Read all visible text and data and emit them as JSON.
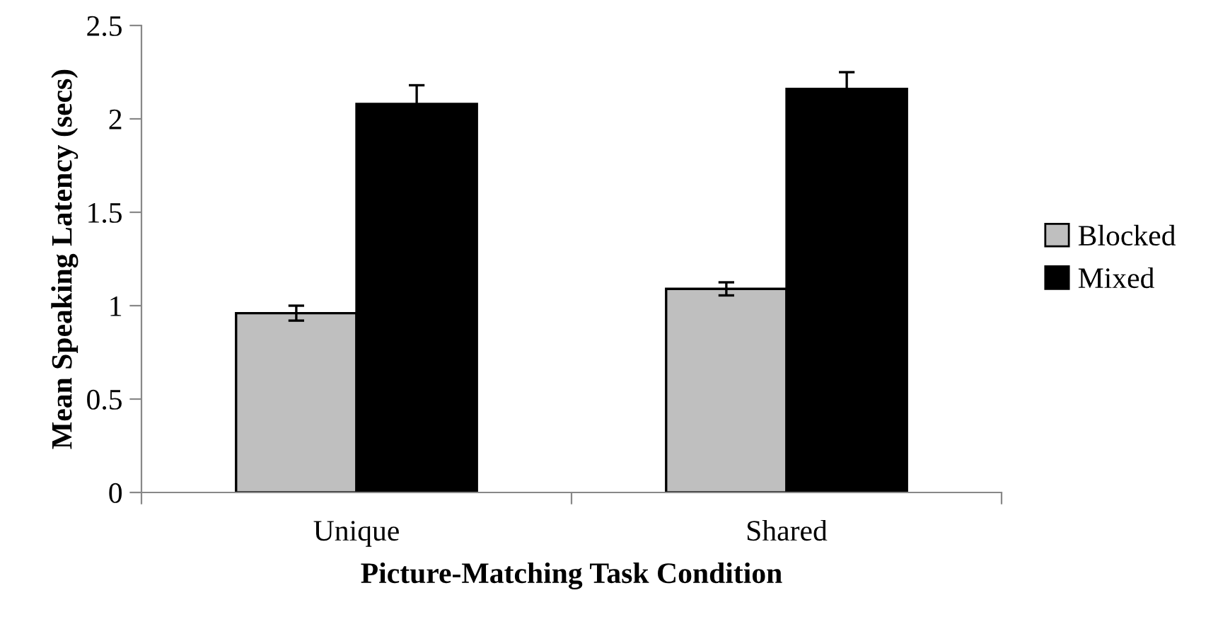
{
  "chart_data": {
    "type": "bar",
    "xlabel": "Picture-Matching Task Condition",
    "ylabel": "Mean Speaking Latency (secs)",
    "categories": [
      "Unique",
      "Shared"
    ],
    "series": [
      {
        "name": "Blocked",
        "color": "#bfbfbf",
        "values": [
          0.96,
          1.09
        ],
        "errors": [
          0.04,
          0.035
        ]
      },
      {
        "name": "Mixed",
        "color": "#000000",
        "values": [
          2.08,
          2.16
        ],
        "errors": [
          0.1,
          0.09
        ]
      }
    ],
    "ylim": [
      0,
      2.5
    ],
    "yticks": [
      0,
      0.5,
      1,
      1.5,
      2,
      2.5
    ],
    "grid": false,
    "legend": "right"
  }
}
